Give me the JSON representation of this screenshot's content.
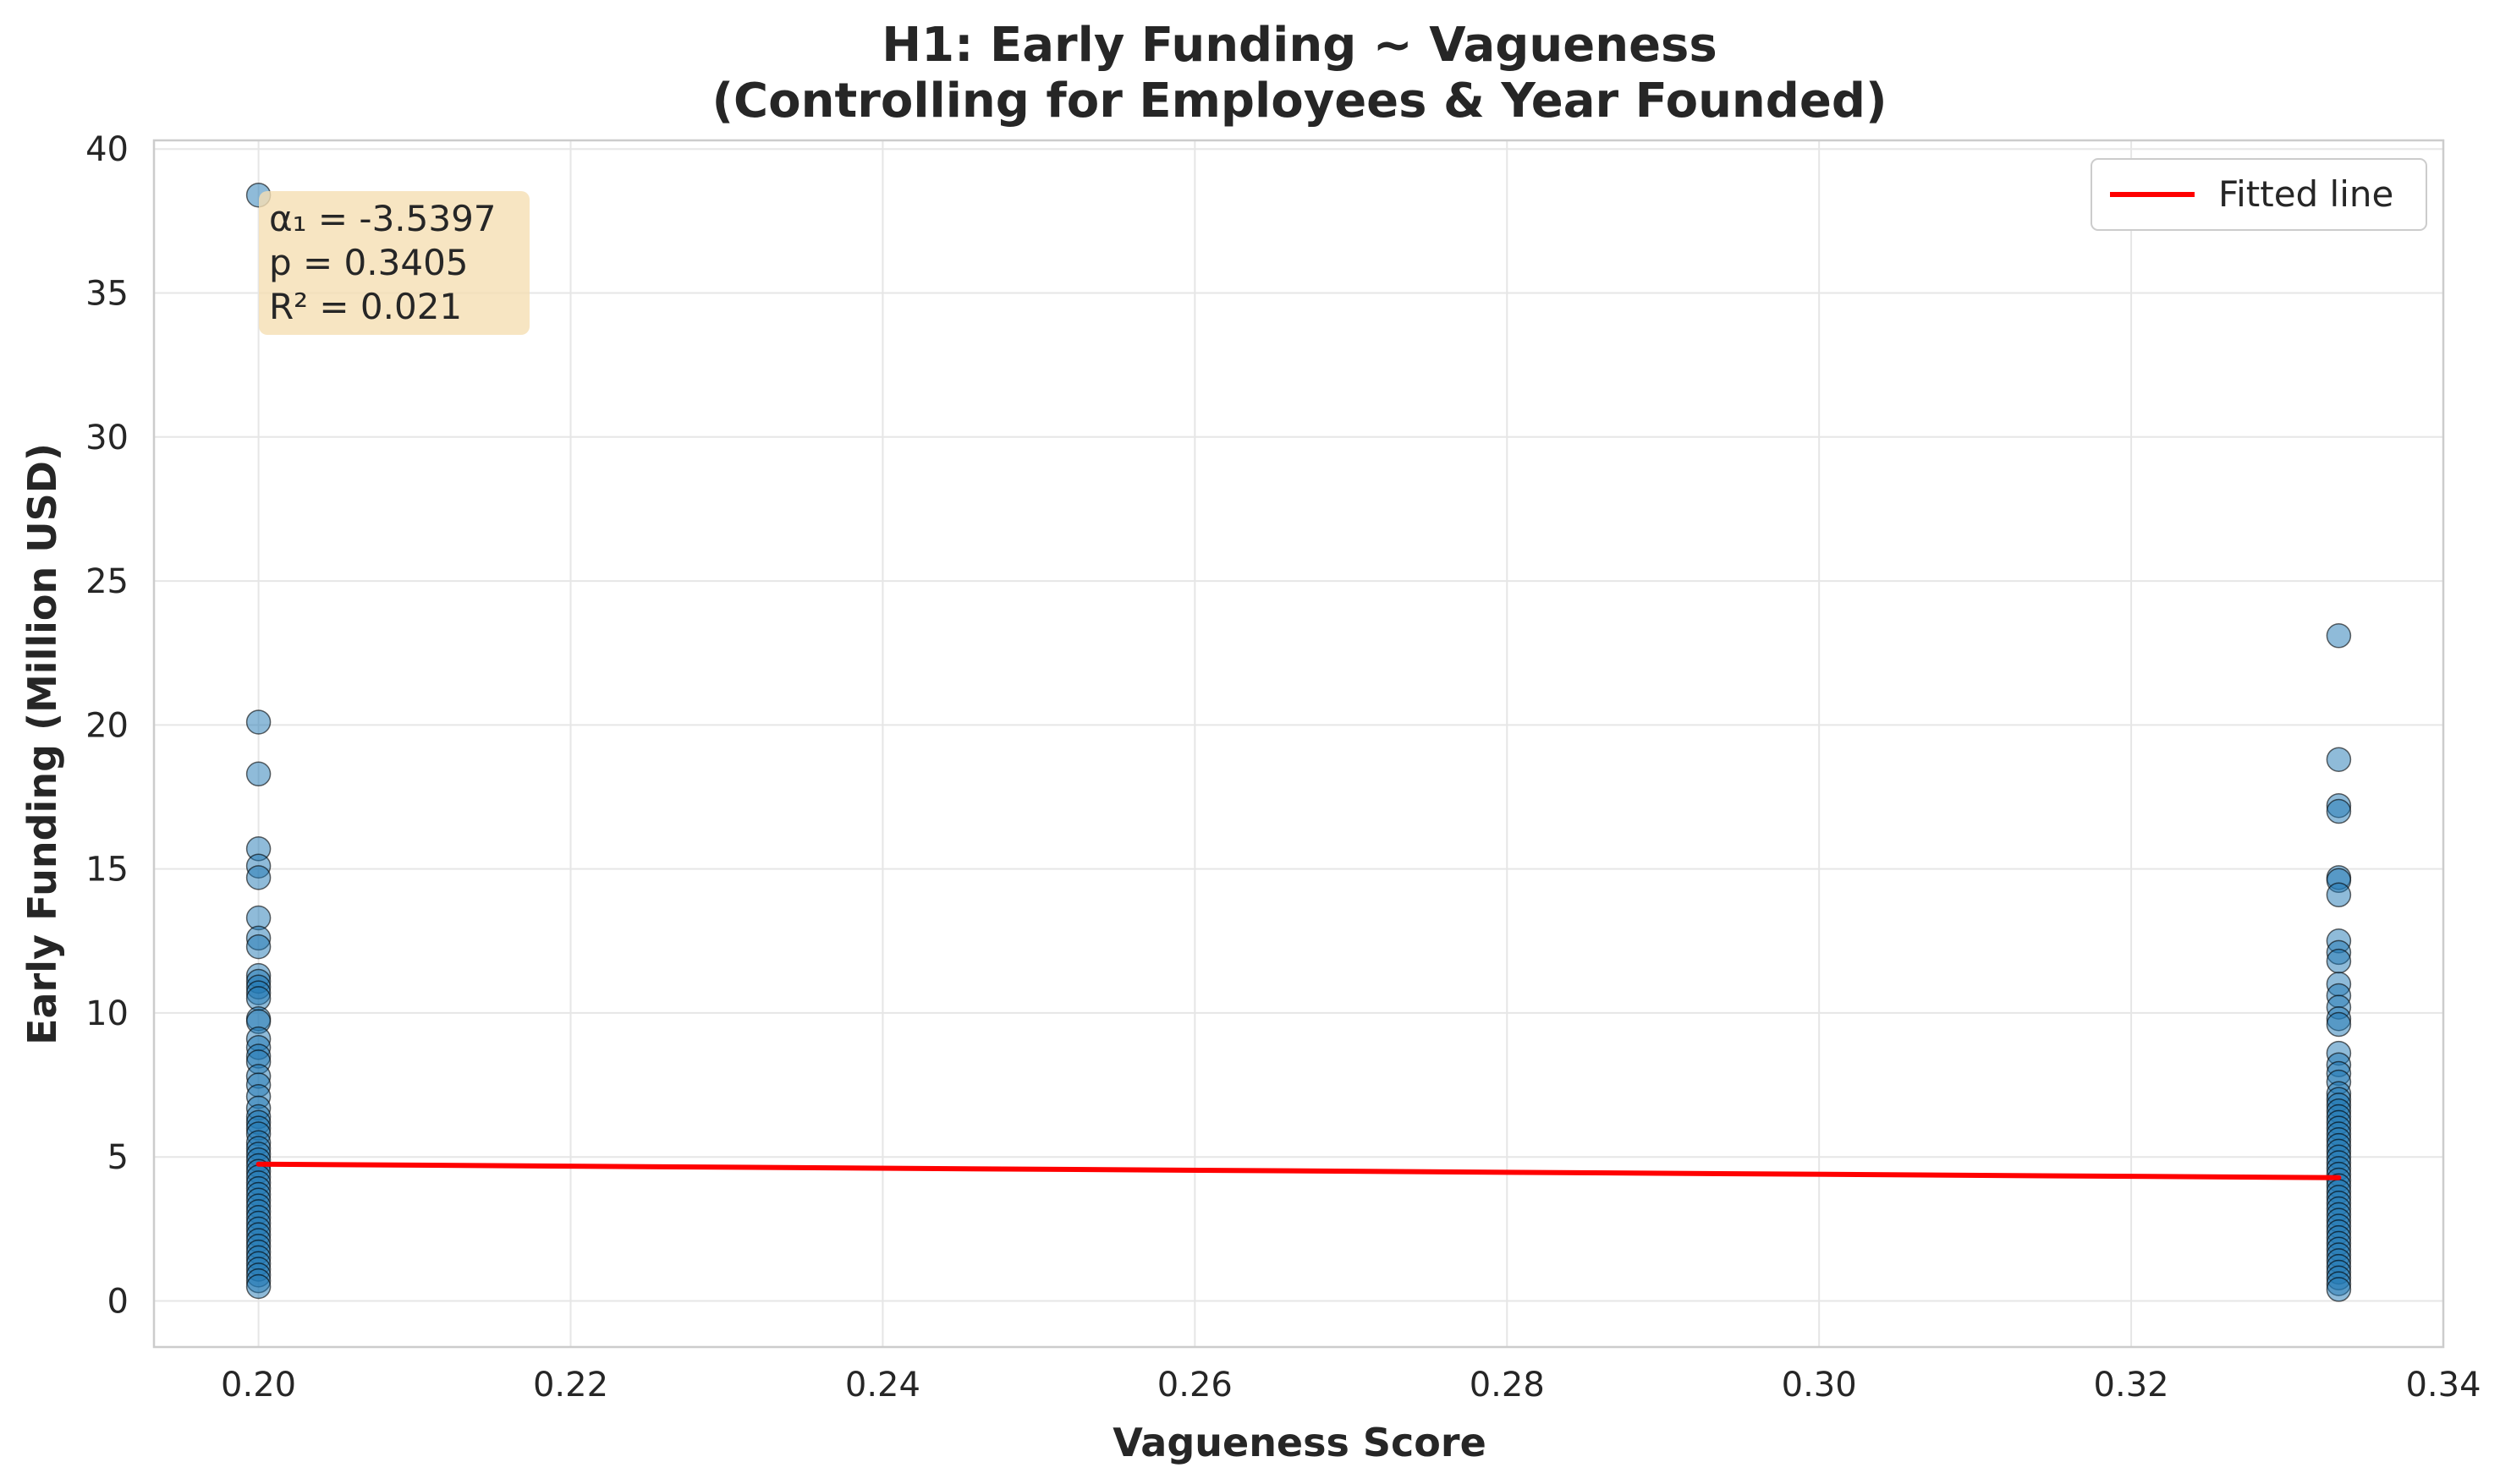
{
  "chart_data": {
    "type": "scatter",
    "title": "H1: Early Funding ~ Vagueness",
    "subtitle": "(Controlling for Employees & Year Founded)",
    "xlabel": "Vagueness Score",
    "ylabel": "Early Funding (Million USD)",
    "xlim": [
      0.1933,
      0.34
    ],
    "ylim": [
      -1.6,
      40.3
    ],
    "x_ticks": [
      "0.20",
      "0.22",
      "0.24",
      "0.26",
      "0.28",
      "0.30",
      "0.32",
      "0.34"
    ],
    "y_ticks": [
      "0",
      "5",
      "10",
      "15",
      "20",
      "25",
      "30",
      "35",
      "40"
    ],
    "grid": true,
    "legend_position": "top-right",
    "series": [
      {
        "kind": "scatter",
        "color": "#1f77b4",
        "x_values": [
          0.2,
          0.3333
        ],
        "points_at_x_0_2": [
          38.4,
          20.1,
          18.3,
          15.7,
          15.1,
          14.7,
          13.3,
          12.6,
          12.3,
          11.3,
          11.1,
          10.9,
          10.7,
          10.5,
          9.8,
          9.7,
          9.1,
          8.8,
          8.5,
          8.3,
          7.8,
          7.5,
          7.1,
          6.7,
          6.4,
          6.2,
          6.0,
          5.8,
          5.5,
          5.3,
          5.1,
          4.9,
          4.7,
          4.5,
          4.3,
          4.1,
          3.9,
          3.7,
          3.5,
          3.3,
          3.1,
          2.9,
          2.7,
          2.5,
          2.3,
          2.1,
          1.9,
          1.7,
          1.5,
          1.3,
          1.1,
          0.9,
          0.7,
          0.5
        ],
        "points_at_x_0_3333": [
          23.1,
          18.8,
          17.2,
          17.0,
          14.7,
          14.6,
          14.1,
          12.5,
          12.1,
          11.8,
          11.0,
          10.6,
          10.2,
          9.8,
          9.6,
          8.6,
          8.2,
          7.9,
          7.6,
          7.2,
          7.0,
          6.8,
          6.6,
          6.4,
          6.2,
          6.0,
          5.8,
          5.6,
          5.4,
          5.2,
          5.0,
          4.8,
          4.6,
          4.4,
          4.2,
          4.0,
          3.8,
          3.6,
          3.4,
          3.2,
          3.0,
          2.8,
          2.6,
          2.4,
          2.2,
          2.0,
          1.8,
          1.6,
          1.4,
          1.2,
          1.0,
          0.8,
          0.6,
          0.4
        ]
      },
      {
        "kind": "line",
        "name": "Fitted line",
        "color": "#ff0000",
        "x": [
          0.2,
          0.3333
        ],
        "y": [
          4.75,
          4.28
        ]
      }
    ],
    "annotation": {
      "lines": [
        "α₁ = -3.5397",
        "p = 0.3405",
        "R² = 0.021"
      ],
      "box_color": "#f5deb3"
    }
  }
}
